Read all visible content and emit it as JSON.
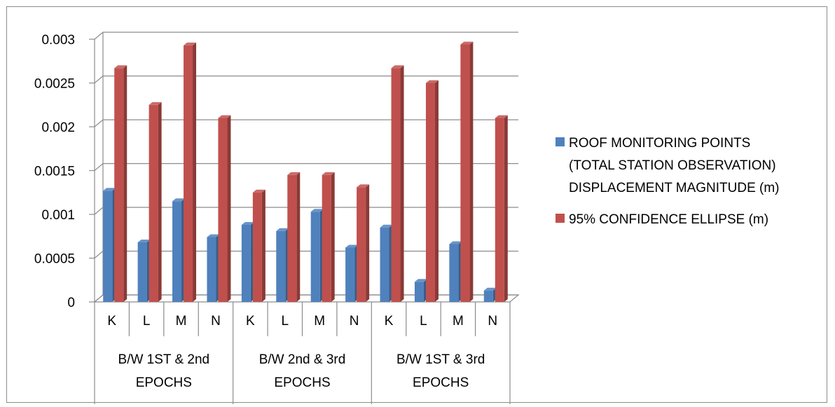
{
  "chart_data": {
    "type": "bar",
    "title": "",
    "xlabel": "",
    "ylabel": "",
    "ylim": [
      0,
      0.003
    ],
    "yticks": [
      "0",
      "0.0005",
      "0.001",
      "0.0015",
      "0.002",
      "0.0025",
      "0.003"
    ],
    "grid": true,
    "legend_position": "right",
    "groups": [
      {
        "label": "B/W 1ST & 2nd EPOCHS",
        "lines": [
          "B/W 1ST & 2nd",
          "EPOCHS"
        ]
      },
      {
        "label": "B/W 2nd & 3rd EPOCHS",
        "lines": [
          "B/W 2nd & 3rd",
          "EPOCHS"
        ]
      },
      {
        "label": "B/W 1ST & 3rd EPOCHS",
        "lines": [
          "B/W 1ST & 3rd",
          "EPOCHS"
        ]
      }
    ],
    "categories": [
      "K",
      "L",
      "M",
      "N",
      "K",
      "L",
      "M",
      "N",
      "K",
      "L",
      "M",
      "N"
    ],
    "series": [
      {
        "name": "ROOF MONITORING POINTS (TOTAL STATION OBSERVATION) DISPLACEMENT MAGNITUDE (m)",
        "legend_lines": [
          "ROOF MONITORING POINTS",
          "(TOTAL STATION OBSERVATION)",
          "DISPLACEMENT MAGNITUDE (m)"
        ],
        "color": "#4f81bd",
        "values": [
          0.00127,
          0.00068,
          0.00115,
          0.00074,
          0.00088,
          0.00081,
          0.00103,
          0.00062,
          0.00085,
          0.00023,
          0.00066,
          0.00013
        ]
      },
      {
        "name": "95% CONFIDENCE ELLIPSE (m)",
        "legend_lines": [
          "95% CONFIDENCE ELLIPSE (m)"
        ],
        "color": "#c0504d",
        "values": [
          0.00267,
          0.00225,
          0.00293,
          0.0021,
          0.00125,
          0.00145,
          0.00145,
          0.00131,
          0.00267,
          0.0025,
          0.00294,
          0.0021
        ]
      }
    ]
  }
}
